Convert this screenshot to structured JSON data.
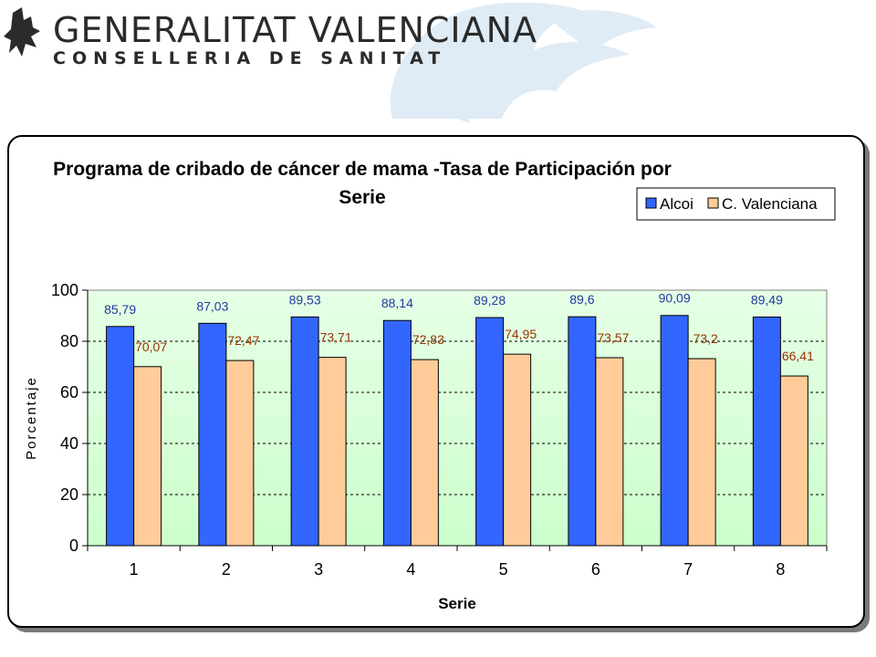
{
  "header": {
    "org_name": "GENERALITAT VALENCIANA",
    "dept_name": "CONSELLERIA DE SANITAT",
    "emblem_icon": "bat-crest-icon",
    "watermark_icon": "winged-crest-watermark-icon"
  },
  "colors": {
    "alcoi": "#3366ff",
    "cvalenciana": "#ffcc99",
    "alcoi_label": "#1f3aa0",
    "cval_label": "#993300",
    "plot_top": "#e6ffe6",
    "plot_bottom": "#ccffcc"
  },
  "chart_data": {
    "type": "bar",
    "title_line1": "Programa de cribado de cáncer de mama -Tasa de Participación por",
    "title_line2": "Serie",
    "xlabel": "Serie",
    "ylabel": "Porcentaje",
    "categories": [
      "1",
      "2",
      "3",
      "4",
      "5",
      "6",
      "7",
      "8"
    ],
    "ylim": [
      0,
      100
    ],
    "yticks": [
      0,
      20,
      40,
      60,
      80,
      100
    ],
    "grid": true,
    "legend_position": "top-right",
    "series": [
      {
        "name": "Alcoi",
        "values": [
          85.79,
          87.03,
          89.53,
          88.14,
          89.28,
          89.6,
          90.09,
          89.49
        ],
        "labels": [
          "85,79",
          "87,03",
          "89,53",
          "88,14",
          "89,28",
          "89,6",
          "90,09",
          "89,49"
        ]
      },
      {
        "name": "C. Valenciana",
        "values": [
          70.07,
          72.47,
          73.71,
          72.83,
          74.95,
          73.57,
          73.2,
          66.41
        ],
        "labels": [
          "70,07",
          "72,47",
          "73,71",
          "72,83",
          "74,95",
          "73,57",
          "73,2",
          "66,41"
        ]
      }
    ]
  }
}
